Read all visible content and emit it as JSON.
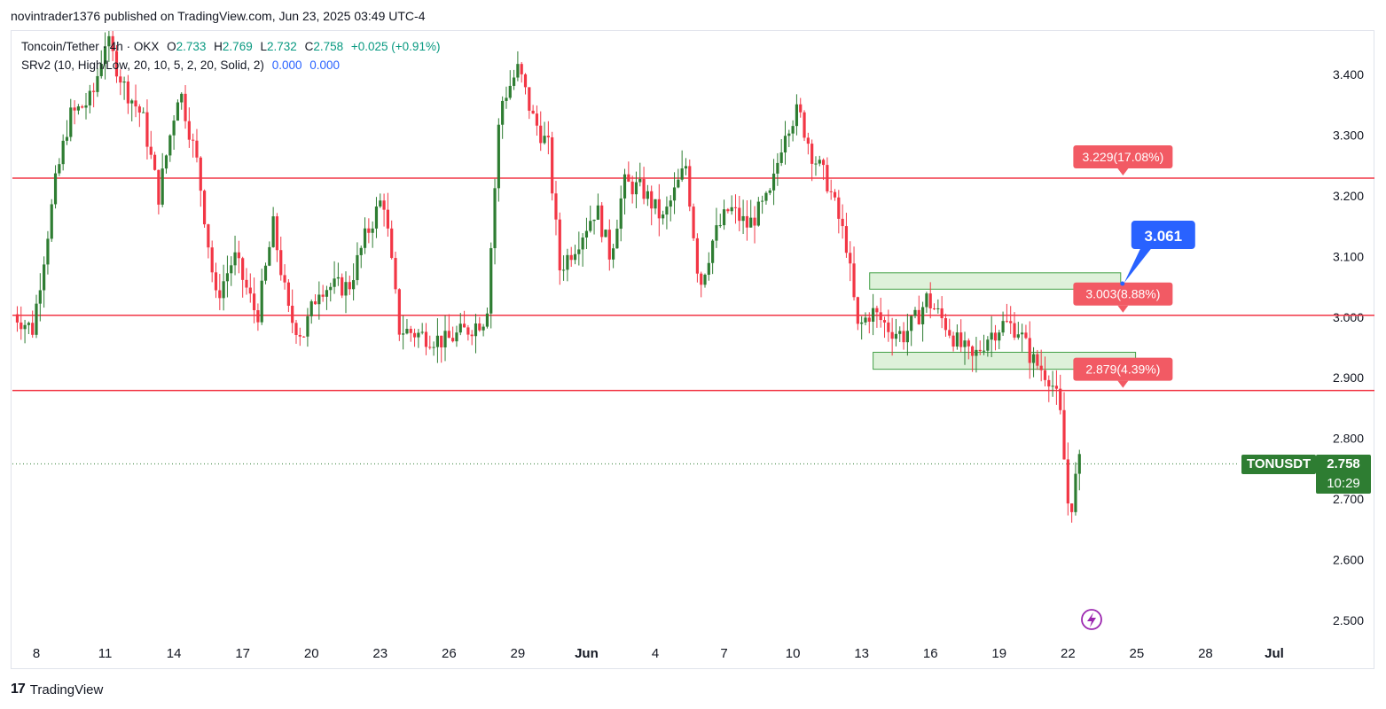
{
  "header": {
    "published_line": "novintrader1376 published on TradingView.com, Jun 23, 2025 03:49 UTC-4"
  },
  "legend": {
    "symbol_line": "Toncoin/Tether · 4h · OKX",
    "open_label": "O",
    "open": "2.733",
    "high_label": "H",
    "high": "2.769",
    "low_label": "L",
    "low": "2.732",
    "close_label": "C",
    "close": "2.758",
    "change": "+0.025 (+0.91%)",
    "indicator_line": "SRv2 (10, High/Low, 20, 10, 5, 2, 20, Solid, 2)",
    "indicator_val1": "0.000",
    "indicator_val2": "0.000"
  },
  "price_tag": {
    "symbol": "TONUSDT",
    "price": "2.758",
    "countdown": "10:29"
  },
  "footer": {
    "brand": "TradingView"
  },
  "colors": {
    "up": "#089981",
    "up_dark": "#2e7d32",
    "down": "#f23645",
    "level_line": "#f23645",
    "zone_fill": "#d8efd3",
    "zone_border": "#43a047",
    "callout_blue": "#2962ff",
    "badge_red": "#f25a64"
  },
  "chart_data": {
    "type": "candlestick",
    "ylim": [
      2.45,
      3.48
    ],
    "y_ticks": [
      "3.400",
      "3.300",
      "3.200",
      "3.100",
      "3.000",
      "2.900",
      "2.800",
      "2.700",
      "2.600",
      "2.500"
    ],
    "y_tick_values": [
      3.4,
      3.3,
      3.2,
      3.1,
      3.0,
      2.9,
      2.8,
      2.7,
      2.6,
      2.5
    ],
    "x_ticks": [
      "8",
      "11",
      "14",
      "17",
      "20",
      "23",
      "26",
      "29",
      "Jun",
      "4",
      "7",
      "10",
      "13",
      "16",
      "19",
      "22",
      "25",
      "28",
      "Jul"
    ],
    "x_tick_days": [
      8,
      11,
      14,
      17,
      20,
      23,
      26,
      29,
      32,
      35,
      38,
      41,
      44,
      47,
      50,
      53,
      56,
      59,
      62
    ],
    "x_range_days": [
      7.0,
      63.8
    ],
    "last_price": 2.758,
    "levels": [
      {
        "price": 3.229,
        "label": "3.229(17.08%)"
      },
      {
        "price": 3.003,
        "label": "3.003(8.88%)"
      },
      {
        "price": 2.879,
        "label": "2.879(4.39%)"
      }
    ],
    "label_day": 55.4,
    "zones": [
      {
        "day_start": 44.35,
        "day_end": 55.3,
        "top": 3.073,
        "bottom": 3.046
      },
      {
        "day_start": 44.5,
        "day_end": 55.95,
        "top": 2.942,
        "bottom": 2.914
      }
    ],
    "callout": {
      "value": "3.061",
      "price": 3.061,
      "day": 55.3
    },
    "candle_anchors": [
      [
        7.0,
        3.01
      ],
      [
        8.0,
        2.98
      ],
      [
        9.0,
        3.22
      ],
      [
        9.6,
        3.33
      ],
      [
        10.6,
        3.36
      ],
      [
        11.2,
        3.46
      ],
      [
        12.0,
        3.38
      ],
      [
        12.8,
        3.33
      ],
      [
        13.5,
        3.2
      ],
      [
        14.4,
        3.38
      ],
      [
        15.2,
        3.25
      ],
      [
        16.0,
        3.03
      ],
      [
        16.8,
        3.1
      ],
      [
        17.8,
        3.0
      ],
      [
        18.5,
        3.15
      ],
      [
        19.2,
        3.0
      ],
      [
        19.8,
        2.97
      ],
      [
        20.5,
        3.05
      ],
      [
        21.8,
        3.05
      ],
      [
        22.5,
        3.13
      ],
      [
        23.3,
        3.2
      ],
      [
        24.0,
        2.98
      ],
      [
        25.0,
        2.97
      ],
      [
        26.0,
        2.96
      ],
      [
        27.0,
        2.98
      ],
      [
        27.8,
        3.0
      ],
      [
        28.4,
        3.35
      ],
      [
        29.2,
        3.41
      ],
      [
        29.8,
        3.33
      ],
      [
        30.5,
        3.28
      ],
      [
        31.0,
        3.08
      ],
      [
        31.7,
        3.12
      ],
      [
        32.6,
        3.18
      ],
      [
        33.2,
        3.1
      ],
      [
        33.8,
        3.22
      ],
      [
        34.6,
        3.21
      ],
      [
        35.5,
        3.16
      ],
      [
        36.5,
        3.25
      ],
      [
        37.1,
        3.05
      ],
      [
        37.7,
        3.13
      ],
      [
        38.4,
        3.18
      ],
      [
        39.2,
        3.15
      ],
      [
        40.2,
        3.2
      ],
      [
        40.8,
        3.31
      ],
      [
        41.4,
        3.34
      ],
      [
        42.0,
        3.27
      ],
      [
        42.7,
        3.22
      ],
      [
        43.5,
        3.12
      ],
      [
        44.0,
        2.98
      ],
      [
        44.6,
        3.01
      ],
      [
        45.4,
        2.98
      ],
      [
        46.0,
        2.97
      ],
      [
        46.6,
        3.0
      ],
      [
        47.0,
        3.03
      ],
      [
        47.8,
        2.99
      ],
      [
        48.3,
        2.96
      ],
      [
        49.0,
        2.93
      ],
      [
        49.7,
        2.97
      ],
      [
        50.4,
        2.99
      ],
      [
        51.0,
        2.98
      ],
      [
        51.6,
        2.93
      ],
      [
        52.4,
        2.9
      ],
      [
        52.8,
        2.85
      ],
      [
        53.2,
        2.68
      ],
      [
        53.4,
        2.7
      ],
      [
        53.58,
        2.758
      ]
    ]
  }
}
